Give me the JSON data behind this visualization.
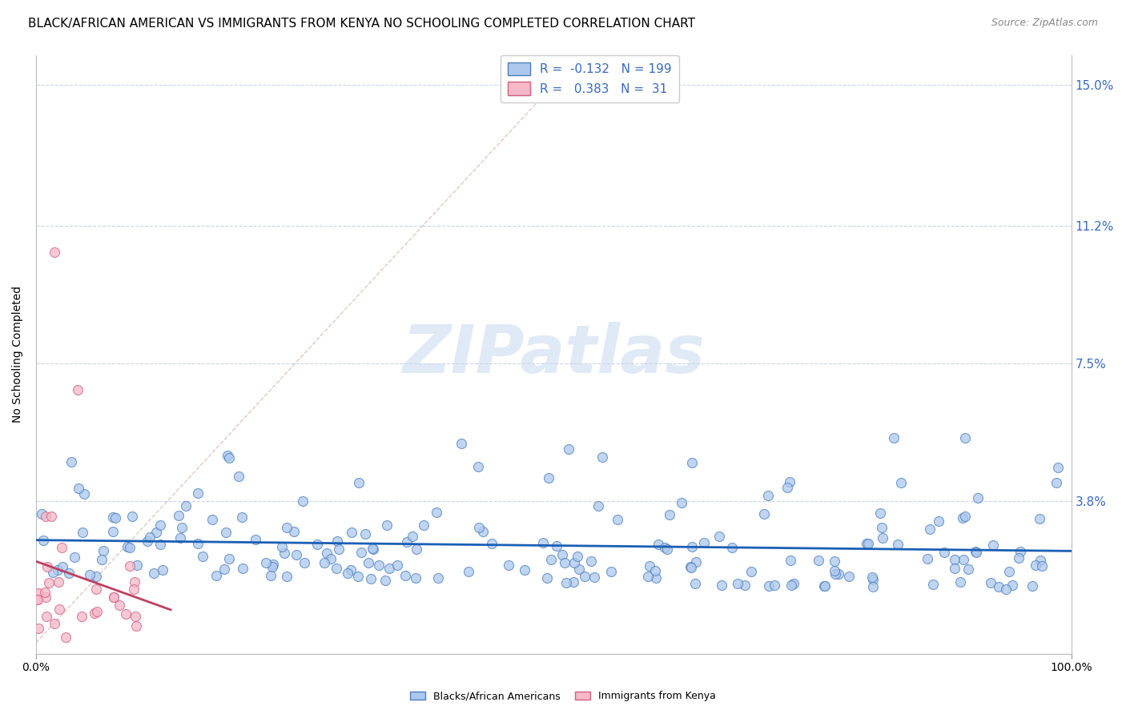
{
  "title": "BLACK/AFRICAN AMERICAN VS IMMIGRANTS FROM KENYA NO SCHOOLING COMPLETED CORRELATION CHART",
  "source": "Source: ZipAtlas.com",
  "ylabel": "No Schooling Completed",
  "xlim": [
    0.0,
    1.0
  ],
  "ylim": [
    -0.003,
    0.158
  ],
  "plot_ylim": [
    0.0,
    0.15
  ],
  "ytick_positions": [
    0.0,
    0.038,
    0.075,
    0.112,
    0.15
  ],
  "ytick_labels_right": [
    "",
    "3.8%",
    "7.5%",
    "11.2%",
    "15.0%"
  ],
  "blue_R": -0.132,
  "blue_N": 199,
  "pink_R": 0.383,
  "pink_N": 31,
  "blue_scatter_color": "#adc8ed",
  "blue_edge_color": "#4a7fc0",
  "pink_scatter_color": "#f5b8c8",
  "pink_edge_color": "#d06080",
  "blue_line_color": "#1a5fb4",
  "pink_line_color": "#c04060",
  "diag_line_color": "#dbb8b8",
  "grid_color": "#c8d4e8",
  "right_axis_color": "#3a6abf",
  "watermark_color": "#c8d8ef",
  "legend_box_color": "#3a6abf",
  "title_fontsize": 11,
  "source_fontsize": 9,
  "legend_fontsize": 11,
  "ylabel_fontsize": 10,
  "watermark_fontsize": 60,
  "seed": 42
}
